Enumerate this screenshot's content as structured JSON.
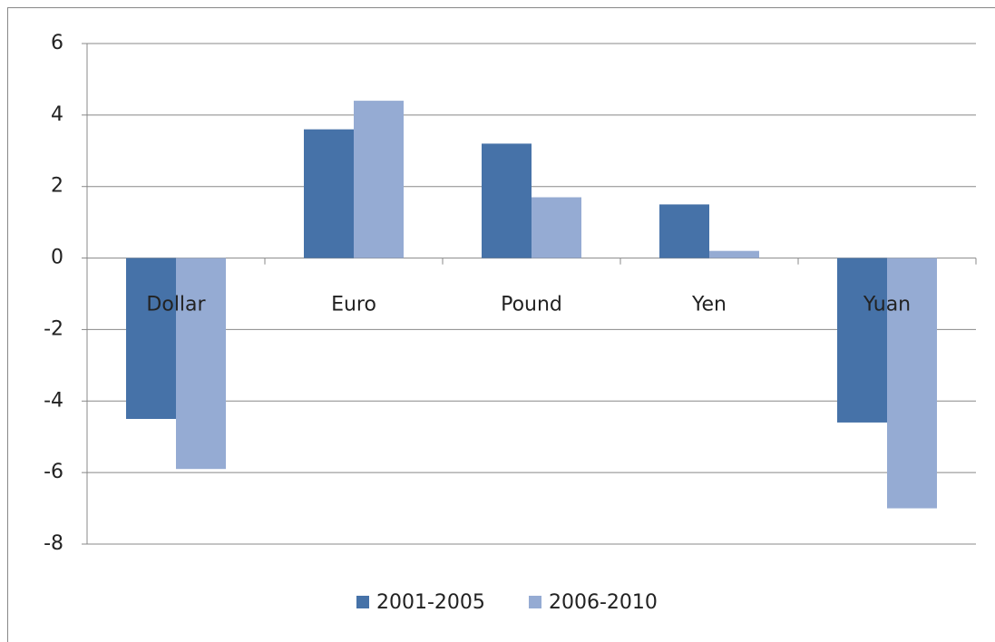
{
  "chart_data": {
    "type": "bar",
    "categories": [
      "Dollar",
      "Euro",
      "Pound",
      "Yen",
      "Yuan"
    ],
    "series": [
      {
        "name": "2001-2005",
        "color": "#4672a8",
        "values": [
          -4.5,
          3.6,
          3.2,
          1.5,
          -4.6
        ]
      },
      {
        "name": "2006-2010",
        "color": "#95abd3",
        "values": [
          -5.9,
          4.4,
          1.7,
          0.2,
          -7.0
        ]
      }
    ],
    "ylim": [
      -8,
      6
    ],
    "yticks": [
      -8,
      -6,
      -4,
      -2,
      0,
      2,
      4,
      6
    ],
    "grid": true,
    "legend": "bottom"
  }
}
